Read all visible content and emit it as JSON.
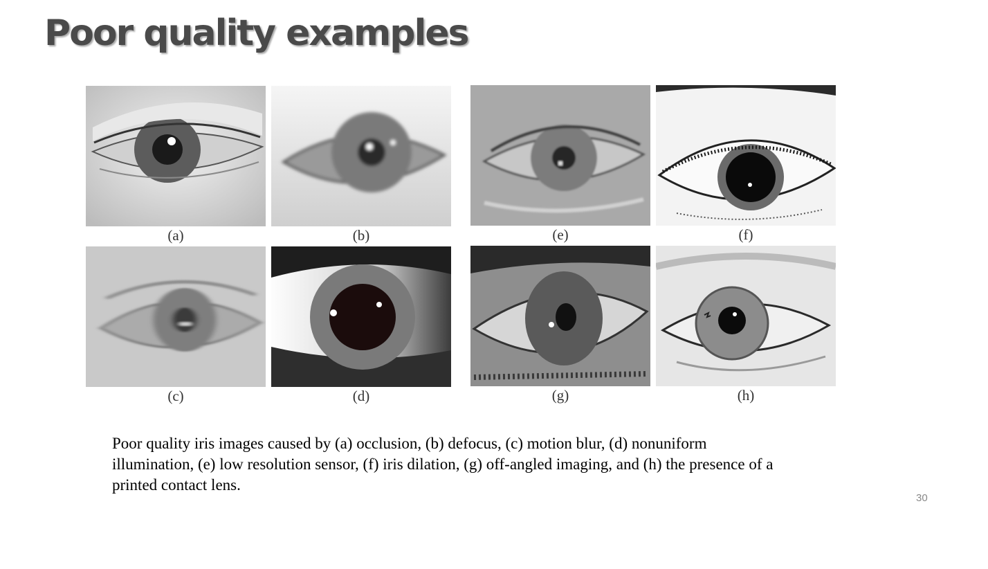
{
  "slide": {
    "title": "Poor quality examples",
    "page_number": "30"
  },
  "figure": {
    "panels": [
      {
        "id": "a",
        "label": "(a)"
      },
      {
        "id": "b",
        "label": "(b)"
      },
      {
        "id": "e",
        "label": "(e)"
      },
      {
        "id": "f",
        "label": "(f)"
      },
      {
        "id": "c",
        "label": "(c)"
      },
      {
        "id": "d",
        "label": "(d)"
      },
      {
        "id": "g",
        "label": "(g)"
      },
      {
        "id": "h",
        "label": "(h)"
      }
    ],
    "caption": "Poor quality iris images caused by (a) occlusion, (b) defocus, (c) motion blur, (d) nonuniform illumination, (e) low resolution sensor, (f) iris dilation, (g) off-angled imaging, and (h) the presence of a printed contact lens."
  }
}
